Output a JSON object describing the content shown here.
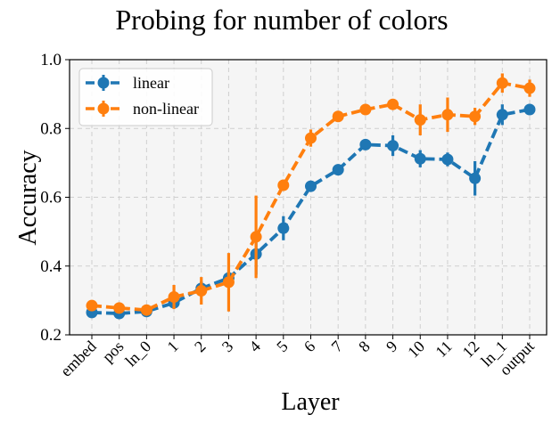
{
  "chart_data": {
    "type": "line",
    "title": "Probing for number of colors",
    "xlabel": "Layer",
    "ylabel": "Accuracy",
    "categories": [
      "embed",
      "pos",
      "ln_0",
      "1",
      "2",
      "3",
      "4",
      "5",
      "6",
      "7",
      "8",
      "9",
      "10",
      "11",
      "12",
      "ln_1",
      "output"
    ],
    "ylim": [
      0.2,
      1.0
    ],
    "yticks": [
      "0.2",
      "0.4",
      "0.6",
      "0.8",
      "1.0"
    ],
    "grid": true,
    "legend_position": "top-left",
    "series": [
      {
        "name": "linear",
        "color": "#1f77b4",
        "values": [
          0.265,
          0.262,
          0.268,
          0.293,
          0.335,
          0.365,
          0.435,
          0.51,
          0.632,
          0.68,
          0.753,
          0.75,
          0.712,
          0.71,
          0.655,
          0.84,
          0.855
        ],
        "errors": [
          0.012,
          0.01,
          0.01,
          0.015,
          0.02,
          0.02,
          0.06,
          0.035,
          0.015,
          0.012,
          0.012,
          0.03,
          0.025,
          0.02,
          0.05,
          0.03,
          0.012
        ]
      },
      {
        "name": "non-linear",
        "color": "#ff7f0e",
        "values": [
          0.285,
          0.278,
          0.272,
          0.31,
          0.328,
          0.353,
          0.485,
          0.635,
          0.772,
          0.835,
          0.855,
          0.87,
          0.825,
          0.84,
          0.835,
          0.932,
          0.917
        ],
        "errors": [
          0.012,
          0.012,
          0.01,
          0.035,
          0.04,
          0.085,
          0.12,
          0.015,
          0.025,
          0.012,
          0.015,
          0.012,
          0.045,
          0.05,
          0.025,
          0.028,
          0.025
        ]
      }
    ]
  }
}
